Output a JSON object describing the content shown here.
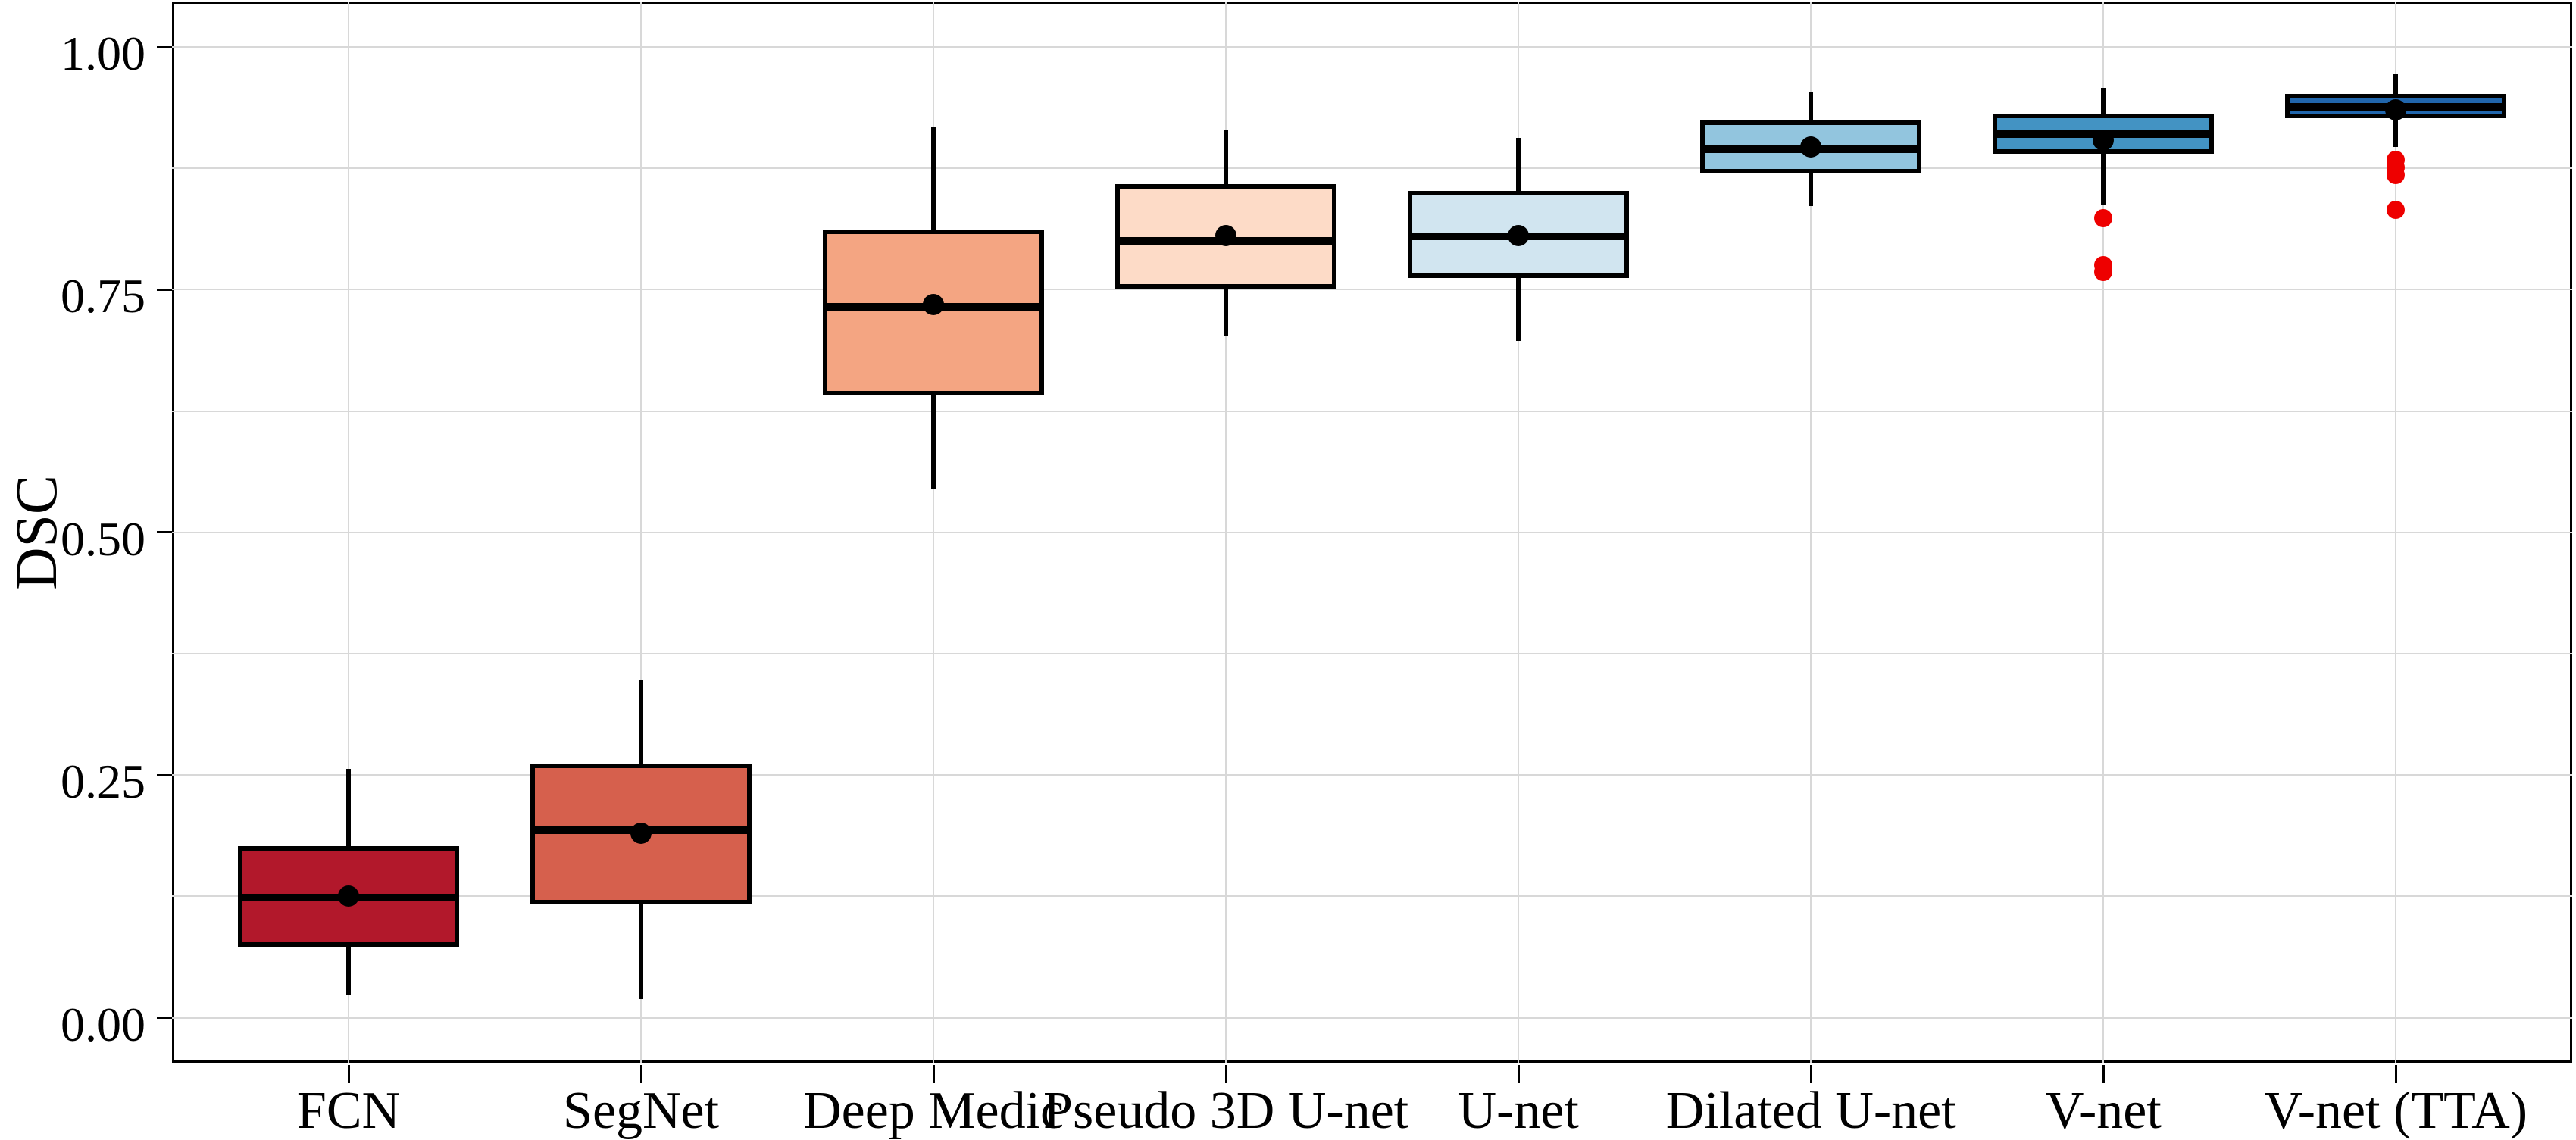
{
  "figure": {
    "background": "#ffffff",
    "grid_color": "#d8d8d8",
    "axis_color": "#000000"
  },
  "chart_data": {
    "type": "boxplot",
    "title": "",
    "xlabel": "",
    "ylabel": "DSC",
    "grid": "on",
    "legend": "none",
    "y_axis": {
      "range": [
        -0.049,
        1.047
      ],
      "major_tick_values": [
        0.0,
        0.25,
        0.5,
        0.75,
        1.0
      ],
      "major_tick_labels": [
        "0.00",
        "0.25",
        "0.50",
        "0.75",
        "1.00"
      ],
      "minor_grid_step": 0.125
    },
    "categories": [
      "FCN",
      "SegNet",
      "Deep Medic",
      "Pseudo 3D U-net",
      "U-net",
      "Dilated U-net",
      "V-net",
      "V-net (TTA)"
    ],
    "outlier_color": "#ee0000",
    "box_edge_color": "#000000",
    "mean_marker_color": "#000000",
    "series": [
      {
        "name": "FCN",
        "fill": "#b2182b",
        "whisker_low": 0.023,
        "q1": 0.073,
        "median": 0.124,
        "mean": 0.125,
        "q3": 0.177,
        "whisker_high": 0.256,
        "outliers": []
      },
      {
        "name": "SegNet",
        "fill": "#d6604d",
        "whisker_low": 0.019,
        "q1": 0.117,
        "median": 0.193,
        "mean": 0.19,
        "q3": 0.262,
        "whisker_high": 0.348,
        "outliers": []
      },
      {
        "name": "Deep Medic",
        "fill": "#f4a582",
        "whisker_low": 0.545,
        "q1": 0.641,
        "median": 0.732,
        "mean": 0.735,
        "q3": 0.812,
        "whisker_high": 0.917,
        "outliers": []
      },
      {
        "name": "Pseudo 3D U-net",
        "fill": "#fddbc7",
        "whisker_low": 0.702,
        "q1": 0.751,
        "median": 0.8,
        "mean": 0.806,
        "q3": 0.859,
        "whisker_high": 0.915,
        "outliers": []
      },
      {
        "name": "U-net",
        "fill": "#d1e5f0",
        "whisker_low": 0.697,
        "q1": 0.762,
        "median": 0.805,
        "mean": 0.806,
        "q3": 0.852,
        "whisker_high": 0.906,
        "outliers": []
      },
      {
        "name": "Dilated U-net",
        "fill": "#92c5de",
        "whisker_low": 0.836,
        "q1": 0.87,
        "median": 0.895,
        "mean": 0.897,
        "q3": 0.924,
        "whisker_high": 0.954,
        "outliers": []
      },
      {
        "name": "V-net",
        "fill": "#4393c3",
        "whisker_low": 0.838,
        "q1": 0.89,
        "median": 0.91,
        "mean": 0.904,
        "q3": 0.931,
        "whisker_high": 0.958,
        "outliers": [
          0.824,
          0.775,
          0.768
        ]
      },
      {
        "name": "V-net (TTA)",
        "fill": "#2166ac",
        "whisker_low": 0.897,
        "q1": 0.927,
        "median": 0.938,
        "mean": 0.935,
        "q3": 0.952,
        "whisker_high": 0.972,
        "outliers": [
          0.884,
          0.876,
          0.868,
          0.832
        ]
      }
    ]
  }
}
